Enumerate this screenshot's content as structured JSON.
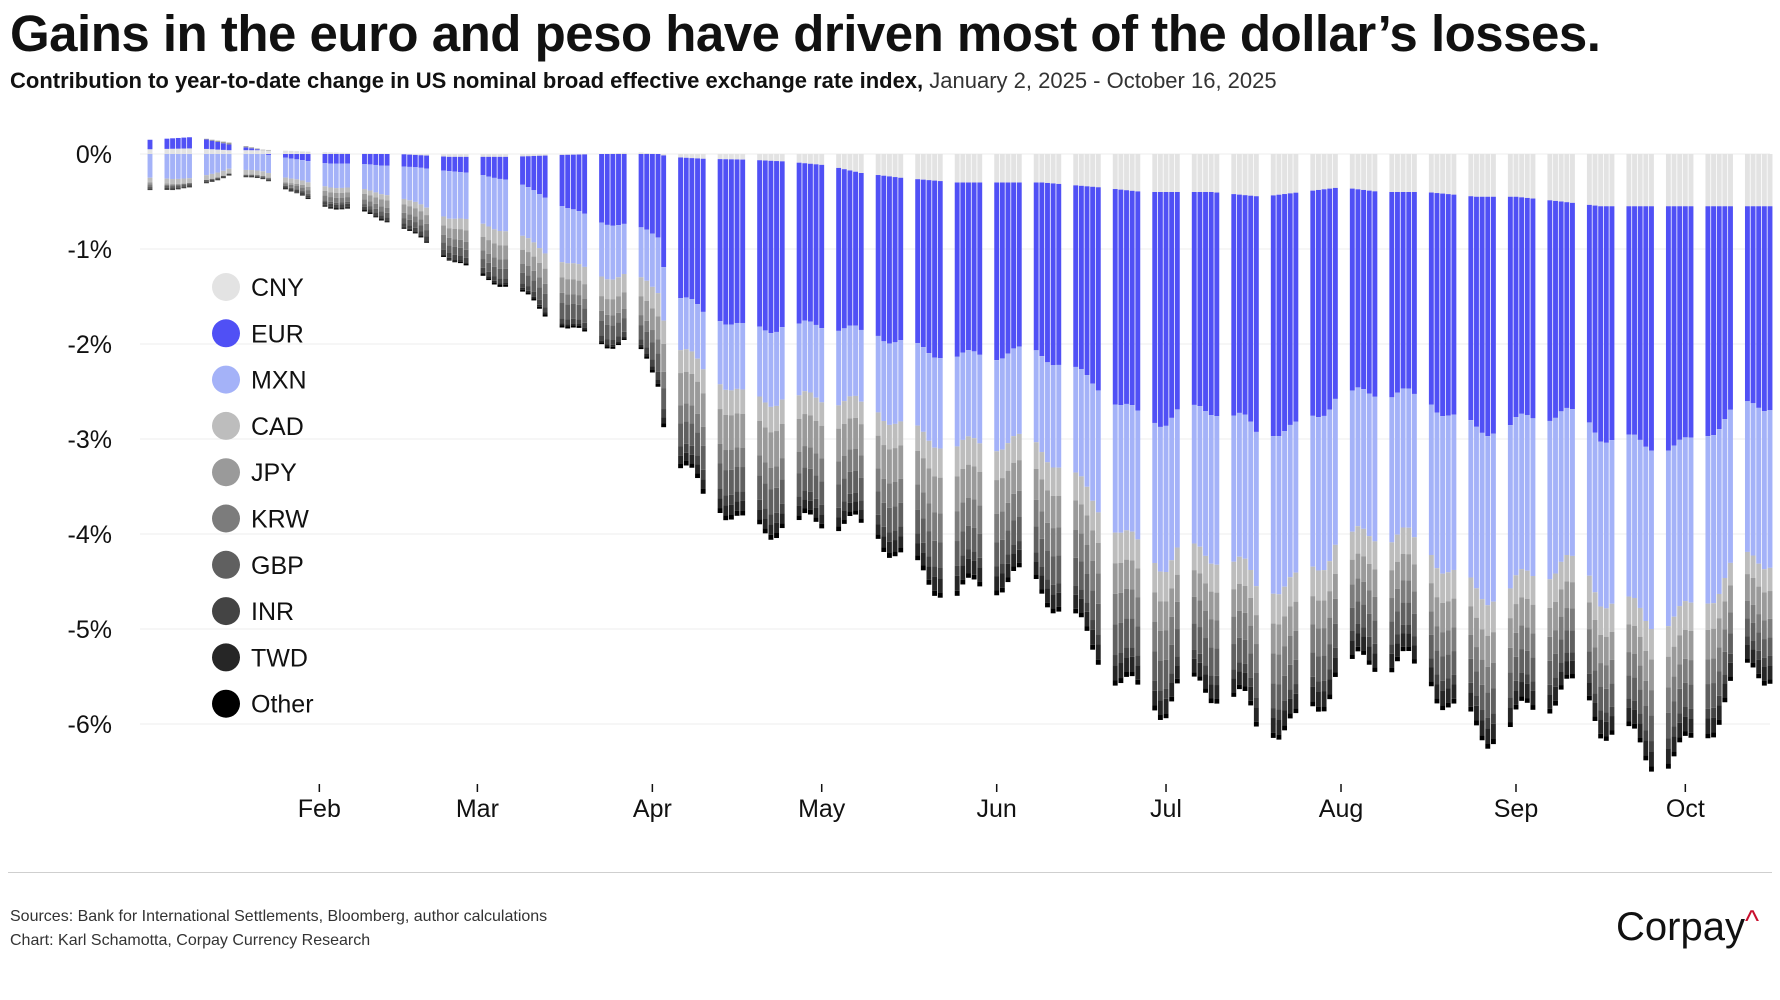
{
  "header": {
    "title": "Gains in the euro and peso have driven most of the dollar’s losses.",
    "subtitle_main": "Contribution to year-to-date change in US nominal broad effective exchange rate index,",
    "subtitle_dates": "January 2, 2025 - October 16, 2025"
  },
  "footer": {
    "sources": "Sources: Bank for International Settlements, Bloomberg, author calculations",
    "credit": "Chart: Karl Schamotta, Corpay Currency Research",
    "brand": "Corpay",
    "brand_mark": "^"
  },
  "chart_data": {
    "type": "bar",
    "stacked": true,
    "title": "Gains in the euro and peso have driven most of the dollar’s losses.",
    "xlabel": "",
    "ylabel": "",
    "ylim": [
      -6.8,
      0.4
    ],
    "yticks": [
      0,
      -1,
      -2,
      -3,
      -4,
      -5,
      -6
    ],
    "ytick_labels": [
      "0%",
      "-1%",
      "-2%",
      "-3%",
      "-4%",
      "-5%",
      "-6%"
    ],
    "x_start_day": 2,
    "x_end_day": 289,
    "months": [
      {
        "label": "Feb",
        "day": 32
      },
      {
        "label": "Mar",
        "day": 60
      },
      {
        "label": "Apr",
        "day": 91
      },
      {
        "label": "May",
        "day": 121
      },
      {
        "label": "Jun",
        "day": 152
      },
      {
        "label": "Jul",
        "day": 182
      },
      {
        "label": "Aug",
        "day": 213
      },
      {
        "label": "Sep",
        "day": 244
      },
      {
        "label": "Oct",
        "day": 274
      }
    ],
    "legend_position": "left",
    "series_names": [
      "CNY",
      "EUR",
      "MXN",
      "CAD",
      "JPY",
      "KRW",
      "GBP",
      "INR",
      "TWD",
      "Other"
    ],
    "series_colors": [
      "#e3e3e3",
      "#5050f5",
      "#a4b2f8",
      "#bdbdbd",
      "#9a9a9a",
      "#7c7c7c",
      "#606060",
      "#444444",
      "#262626",
      "#000000"
    ],
    "anchor_days": [
      2,
      10,
      16,
      24,
      32,
      38,
      46,
      55,
      60,
      66,
      75,
      82,
      88,
      92,
      94,
      100,
      108,
      115,
      122,
      128,
      135,
      145,
      152,
      160,
      170,
      178,
      182,
      190,
      199,
      206,
      213,
      220,
      228,
      237,
      244,
      252,
      259,
      262,
      268,
      274,
      280,
      285,
      289
    ],
    "series": [
      {
        "name": "CNY",
        "values": [
          0.05,
          0.06,
          0.04,
          0.04,
          0.02,
          0.01,
          0.0,
          -0.03,
          -0.03,
          -0.03,
          -0.01,
          0.0,
          0.02,
          0.0,
          -0.03,
          -0.05,
          -0.06,
          -0.08,
          -0.12,
          -0.2,
          -0.25,
          -0.3,
          -0.3,
          -0.3,
          -0.35,
          -0.4,
          -0.4,
          -0.4,
          -0.45,
          -0.4,
          -0.35,
          -0.4,
          -0.4,
          -0.45,
          -0.45,
          -0.5,
          -0.55,
          -0.55,
          -0.55,
          -0.55,
          -0.55,
          -0.55,
          -0.55
        ]
      },
      {
        "name": "EUR",
        "values": [
          0.1,
          0.12,
          0.06,
          -0.02,
          -0.1,
          -0.1,
          -0.12,
          -0.15,
          -0.2,
          -0.25,
          -0.5,
          -0.7,
          -0.8,
          -0.9,
          -1.5,
          -1.6,
          -1.7,
          -1.7,
          -1.75,
          -1.75,
          -1.7,
          -1.75,
          -1.85,
          -1.9,
          -2.0,
          -2.3,
          -2.4,
          -2.4,
          -2.45,
          -2.35,
          -2.15,
          -2.2,
          -2.25,
          -2.35,
          -2.3,
          -2.3,
          -2.5,
          -2.5,
          -2.4,
          -2.4,
          -2.3,
          -2.2,
          -2.2
        ]
      },
      {
        "name": "MXN",
        "values": [
          -0.25,
          -0.25,
          -0.15,
          -0.2,
          -0.25,
          -0.25,
          -0.3,
          -0.5,
          -0.55,
          -0.55,
          -0.55,
          -0.55,
          -0.55,
          -0.6,
          -0.55,
          -0.6,
          -0.7,
          -0.75,
          -0.8,
          -0.8,
          -0.85,
          -0.9,
          -0.95,
          -1.05,
          -1.2,
          -1.35,
          -1.5,
          -1.6,
          -1.6,
          -1.55,
          -1.5,
          -1.55,
          -1.6,
          -1.65,
          -1.65,
          -1.65,
          -1.75,
          -1.75,
          -1.75,
          -1.7,
          -1.7,
          -1.7,
          -1.7
        ]
      },
      {
        "name": "CAD",
        "values": [
          -0.05,
          -0.05,
          -0.05,
          -0.05,
          -0.05,
          -0.05,
          -0.05,
          -0.1,
          -0.15,
          -0.15,
          -0.15,
          -0.2,
          -0.2,
          -0.25,
          -0.25,
          -0.25,
          -0.25,
          -0.25,
          -0.25,
          -0.25,
          -0.25,
          -0.3,
          -0.3,
          -0.3,
          -0.3,
          -0.3,
          -0.3,
          -0.3,
          -0.3,
          -0.3,
          -0.3,
          -0.3,
          -0.3,
          -0.3,
          -0.3,
          -0.3,
          -0.3,
          -0.3,
          -0.3,
          -0.3,
          -0.25,
          -0.25,
          -0.25
        ]
      },
      {
        "name": "JPY",
        "values": [
          -0.02,
          0.0,
          0.02,
          0.0,
          -0.05,
          -0.05,
          -0.08,
          -0.1,
          -0.15,
          -0.15,
          -0.15,
          -0.15,
          -0.2,
          -0.25,
          -0.35,
          -0.35,
          -0.35,
          -0.35,
          -0.35,
          -0.35,
          -0.35,
          -0.35,
          -0.35,
          -0.35,
          -0.3,
          -0.3,
          -0.3,
          -0.3,
          -0.3,
          -0.3,
          -0.25,
          -0.3,
          -0.3,
          -0.3,
          -0.3,
          -0.3,
          -0.3,
          -0.3,
          -0.3,
          -0.3,
          -0.3,
          -0.3,
          -0.3
        ]
      },
      {
        "name": "KRW",
        "values": [
          -0.02,
          0.0,
          0.0,
          -0.02,
          -0.05,
          -0.05,
          -0.05,
          -0.08,
          -0.1,
          -0.1,
          -0.1,
          -0.1,
          -0.1,
          -0.15,
          -0.2,
          -0.2,
          -0.2,
          -0.22,
          -0.25,
          -0.25,
          -0.25,
          -0.3,
          -0.3,
          -0.3,
          -0.3,
          -0.3,
          -0.3,
          -0.3,
          -0.3,
          -0.3,
          -0.25,
          -0.25,
          -0.25,
          -0.25,
          -0.25,
          -0.25,
          -0.25,
          -0.25,
          -0.25,
          -0.25,
          -0.25,
          -0.2,
          -0.2
        ]
      },
      {
        "name": "GBP",
        "values": [
          -0.02,
          -0.02,
          0.0,
          0.0,
          -0.02,
          -0.02,
          -0.05,
          -0.08,
          -0.1,
          -0.1,
          -0.15,
          -0.15,
          -0.15,
          -0.2,
          -0.25,
          -0.25,
          -0.25,
          -0.25,
          -0.25,
          -0.25,
          -0.25,
          -0.25,
          -0.25,
          -0.3,
          -0.3,
          -0.3,
          -0.3,
          -0.3,
          -0.25,
          -0.25,
          -0.25,
          -0.25,
          -0.25,
          -0.25,
          -0.25,
          -0.25,
          -0.25,
          -0.25,
          -0.25,
          -0.25,
          -0.25,
          -0.2,
          -0.2
        ]
      },
      {
        "name": "INR",
        "values": [
          -0.02,
          -0.02,
          -0.02,
          -0.02,
          -0.03,
          -0.03,
          -0.03,
          -0.05,
          -0.05,
          -0.05,
          -0.05,
          -0.05,
          -0.05,
          -0.08,
          -0.1,
          -0.1,
          -0.1,
          -0.1,
          -0.1,
          -0.1,
          -0.1,
          -0.1,
          -0.1,
          -0.1,
          -0.1,
          -0.1,
          -0.1,
          -0.1,
          -0.1,
          -0.1,
          -0.1,
          -0.1,
          -0.1,
          -0.1,
          -0.1,
          -0.1,
          -0.1,
          -0.1,
          -0.1,
          -0.1,
          -0.1,
          -0.1,
          -0.1
        ]
      },
      {
        "name": "TWD",
        "values": [
          0.0,
          0.0,
          0.0,
          0.0,
          -0.01,
          -0.01,
          -0.01,
          -0.02,
          -0.02,
          -0.02,
          -0.02,
          -0.02,
          -0.02,
          -0.05,
          -0.08,
          -0.1,
          -0.1,
          -0.1,
          -0.1,
          -0.1,
          -0.12,
          -0.15,
          -0.15,
          -0.15,
          -0.15,
          -0.15,
          -0.15,
          -0.15,
          -0.15,
          -0.15,
          -0.15,
          -0.15,
          -0.15,
          -0.15,
          -0.15,
          -0.15,
          -0.15,
          -0.15,
          -0.15,
          -0.15,
          -0.15,
          -0.15,
          -0.15
        ]
      },
      {
        "name": "Other",
        "values": [
          0.0,
          0.0,
          0.0,
          0.0,
          -0.01,
          -0.01,
          -0.01,
          -0.01,
          -0.02,
          -0.02,
          -0.02,
          -0.02,
          -0.02,
          -0.03,
          -0.05,
          -0.05,
          -0.05,
          -0.05,
          -0.05,
          -0.05,
          -0.05,
          -0.05,
          -0.05,
          -0.05,
          -0.05,
          -0.05,
          -0.05,
          -0.05,
          -0.05,
          -0.05,
          -0.05,
          -0.05,
          -0.05,
          -0.05,
          -0.05,
          -0.05,
          -0.05,
          -0.05,
          -0.05,
          -0.05,
          -0.05,
          -0.05,
          -0.05
        ]
      }
    ]
  }
}
